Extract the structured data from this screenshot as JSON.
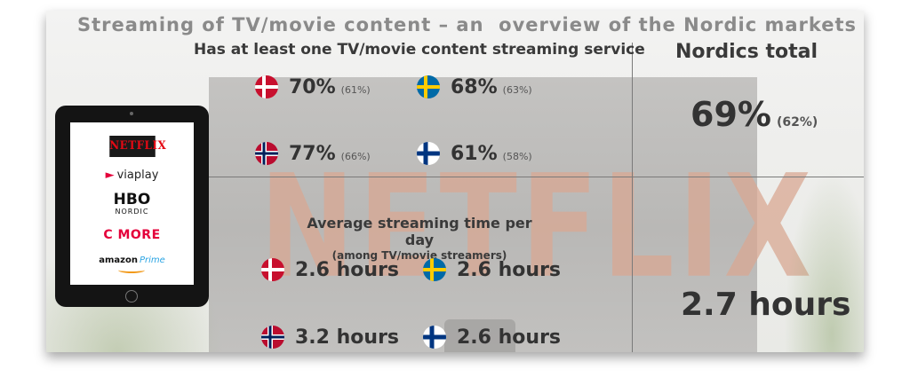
{
  "title": "Streaming of TV/movie content – an  overview of the Nordic markets",
  "section_access": {
    "heading": "Has at least one TV/movie content streaming service",
    "stats": [
      {
        "country": "Denmark",
        "flag": "dk",
        "value": "70%",
        "previous": "(61%)"
      },
      {
        "country": "Sweden",
        "flag": "se",
        "value": "68%",
        "previous": "(63%)"
      },
      {
        "country": "Norway",
        "flag": "no",
        "value": "77%",
        "previous": "(66%)"
      },
      {
        "country": "Finland",
        "flag": "fi",
        "value": "61%",
        "previous": "(58%)"
      }
    ]
  },
  "section_time": {
    "heading": "Average streaming time per day",
    "subheading": "(among TV/movie streamers)",
    "stats": [
      {
        "country": "Denmark",
        "flag": "dk",
        "value": "2.6 hours"
      },
      {
        "country": "Sweden",
        "flag": "se",
        "value": "2.6 hours"
      },
      {
        "country": "Norway",
        "flag": "no",
        "value": "3.2 hours"
      },
      {
        "country": "Finland",
        "flag": "fi",
        "value": "2.6 hours"
      }
    ]
  },
  "nordics": {
    "heading": "Nordics total",
    "access_value": "69%",
    "access_previous": "(62%)",
    "time_value": "2.7 hours"
  },
  "background_text": "NETFLIX",
  "tablet_logos": {
    "netflix": "NETFLIX",
    "viaplay": "viaplay",
    "hbo": "HBO",
    "hbo_sub": "NORDIC",
    "cmore": "C MORE",
    "amazon": "amazon",
    "amazon_prime": "Prime"
  },
  "colors": {
    "denmark_red": "#c8102e",
    "sweden_blue": "#006aa7",
    "sweden_yellow": "#fecc00",
    "norway_red": "#ba0c2f",
    "norway_blue": "#00205b",
    "finland_blue": "#003580",
    "netflix_red": "#e50914",
    "cmore_red": "#e4003a",
    "prime_blue": "#2aa4e3"
  }
}
